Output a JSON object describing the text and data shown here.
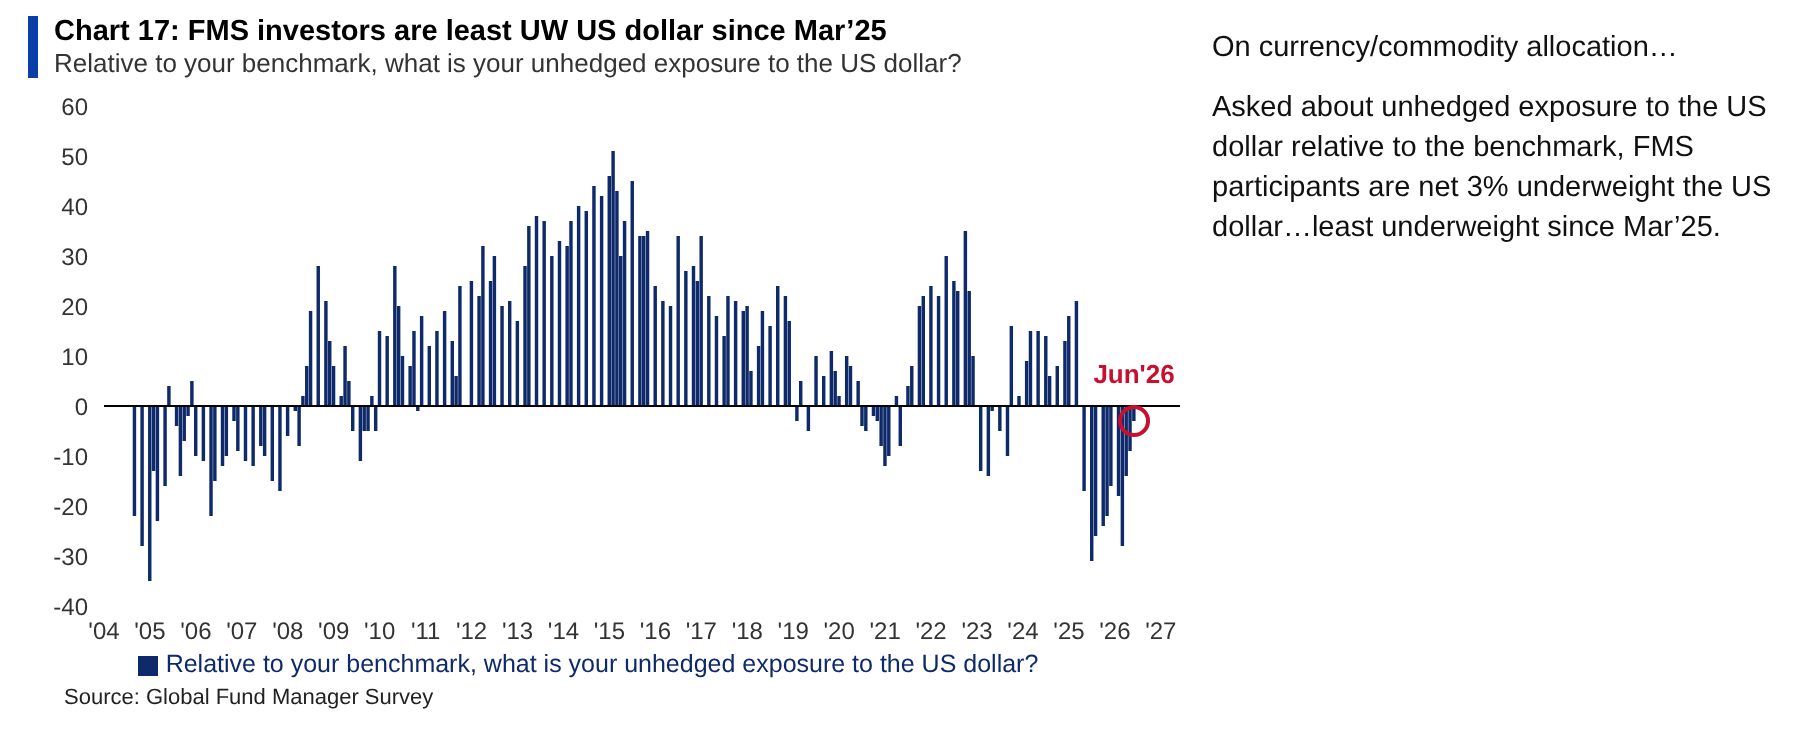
{
  "chart_data": [
    {
      "type": "bar",
      "title": "Chart 17: FMS investors are least UW US dollar since Mar’25",
      "subtitle": "Relative to your benchmark, what is your unhedged exposure to the US dollar?",
      "x": [
        "2004-09",
        "2004-11",
        "2005-01",
        "2005-02",
        "2005-03",
        "2005-05",
        "2005-06",
        "2005-08",
        "2005-09",
        "2005-10",
        "2005-11",
        "2005-12",
        "2006-01",
        "2006-03",
        "2006-05",
        "2006-06",
        "2006-08",
        "2006-09",
        "2006-11",
        "2006-12",
        "2007-02",
        "2007-04",
        "2007-06",
        "2007-07",
        "2007-09",
        "2007-11",
        "2008-01",
        "2008-03",
        "2008-04",
        "2008-05",
        "2008-06",
        "2008-07",
        "2008-09",
        "2008-11",
        "2008-12",
        "2009-01",
        "2009-03",
        "2009-04",
        "2009-05",
        "2009-06",
        "2009-08",
        "2009-09",
        "2009-10",
        "2009-11",
        "2009-12",
        "2010-01",
        "2010-03",
        "2010-05",
        "2010-06",
        "2010-07",
        "2010-09",
        "2010-10",
        "2010-11",
        "2010-12",
        "2011-02",
        "2011-04",
        "2011-06",
        "2011-08",
        "2011-09",
        "2011-10",
        "2012-01",
        "2012-03",
        "2012-04",
        "2012-06",
        "2012-07",
        "2012-09",
        "2012-11",
        "2013-01",
        "2013-03",
        "2013-04",
        "2013-06",
        "2013-08",
        "2013-10",
        "2013-12",
        "2014-02",
        "2014-03",
        "2014-05",
        "2014-07",
        "2014-09",
        "2014-11",
        "2015-01",
        "2015-02",
        "2015-03",
        "2015-04",
        "2015-05",
        "2015-07",
        "2015-09",
        "2015-10",
        "2015-11",
        "2016-01",
        "2016-03",
        "2016-05",
        "2016-07",
        "2016-09",
        "2016-11",
        "2016-12",
        "2017-01",
        "2017-03",
        "2017-05",
        "2017-07",
        "2017-08",
        "2017-10",
        "2017-12",
        "2018-01",
        "2018-02",
        "2018-04",
        "2018-05",
        "2018-07",
        "2018-09",
        "2018-11",
        "2018-12",
        "2019-02",
        "2019-03",
        "2019-05",
        "2019-07",
        "2019-09",
        "2019-11",
        "2019-12",
        "2020-01",
        "2020-03",
        "2020-04",
        "2020-06",
        "2020-07",
        "2020-08",
        "2020-10",
        "2020-11",
        "2020-12",
        "2021-01",
        "2021-02",
        "2021-04",
        "2021-05",
        "2021-07",
        "2021-08",
        "2021-10",
        "2021-11",
        "2022-01",
        "2022-03",
        "2022-05",
        "2022-07",
        "2022-08",
        "2022-10",
        "2022-11",
        "2022-12",
        "2023-02",
        "2023-04",
        "2023-05",
        "2023-07",
        "2023-09",
        "2023-10",
        "2023-12",
        "2024-02",
        "2024-03",
        "2024-05",
        "2024-07",
        "2024-08",
        "2024-10",
        "2024-12",
        "2025-01",
        "2025-03",
        "2025-04",
        "2025-05",
        "2025-07",
        "2025-08",
        "2025-10",
        "2025-11",
        "2025-12",
        "2026-02",
        "2026-03",
        "2026-04",
        "2026-05",
        "2026-06"
      ],
      "series": [
        {
          "name": "Relative to your benchmark, what is your unhedged exposure to the US dollar?",
          "color": "#0f2a6b",
          "values": [
            -22,
            -28,
            -35,
            -13,
            -23,
            -16,
            4,
            -4,
            -14,
            -7,
            -2,
            5,
            -10,
            -11,
            -22,
            -15,
            -12,
            -10,
            -3,
            -9,
            -11,
            -12,
            -8,
            -10,
            -15,
            -17,
            -6,
            -1,
            -8,
            2,
            8,
            19,
            28,
            21,
            13,
            8,
            2,
            12,
            5,
            -5,
            -11,
            -5,
            -5,
            2,
            -5,
            15,
            14,
            28,
            20,
            10,
            8,
            15,
            -1,
            18,
            12,
            15,
            19,
            13,
            6,
            24,
            25,
            22,
            32,
            25,
            30,
            20,
            21,
            17,
            28,
            36,
            38,
            37,
            30,
            33,
            32,
            37,
            40,
            39,
            44,
            42,
            46,
            51,
            43,
            30,
            37,
            45,
            34,
            34,
            35,
            24,
            21,
            20,
            34,
            27,
            28,
            25,
            34,
            22,
            18,
            14,
            22,
            21,
            19,
            20,
            7,
            12,
            19,
            16,
            24,
            22,
            17,
            -3,
            5,
            -5,
            10,
            6,
            11,
            7,
            2,
            10,
            8,
            5,
            -4,
            -5,
            -2,
            -3,
            -8,
            -12,
            -10,
            2,
            -8,
            4,
            8,
            20,
            22,
            24,
            22,
            30,
            25,
            23,
            35,
            23,
            10,
            -13,
            -14,
            -1,
            -5,
            -10,
            16,
            2,
            9,
            15,
            15,
            14,
            6,
            8,
            13,
            18,
            21,
            0,
            -17,
            -31,
            -26,
            -24,
            -22,
            -16,
            -18,
            -28,
            -14,
            -9,
            -3
          ]
        }
      ],
      "xlim": [
        "2004",
        "2027-06"
      ],
      "xticks": [
        {
          "value": "2004",
          "label": "'04"
        },
        {
          "value": "2005",
          "label": "'05"
        },
        {
          "value": "2006",
          "label": "'06"
        },
        {
          "value": "2007",
          "label": "'07"
        },
        {
          "value": "2008",
          "label": "'08"
        },
        {
          "value": "2009",
          "label": "'09"
        },
        {
          "value": "2010",
          "label": "'10"
        },
        {
          "value": "2011",
          "label": "'11"
        },
        {
          "value": "2012",
          "label": "'12"
        },
        {
          "value": "2013",
          "label": "'13"
        },
        {
          "value": "2014",
          "label": "'14"
        },
        {
          "value": "2015",
          "label": "'15"
        },
        {
          "value": "2016",
          "label": "'16"
        },
        {
          "value": "2017",
          "label": "'17"
        },
        {
          "value": "2018",
          "label": "'18"
        },
        {
          "value": "2019",
          "label": "'19"
        },
        {
          "value": "2020",
          "label": "'20"
        },
        {
          "value": "2021",
          "label": "'21"
        },
        {
          "value": "2022",
          "label": "'22"
        },
        {
          "value": "2023",
          "label": "'23"
        },
        {
          "value": "2024",
          "label": "'24"
        },
        {
          "value": "2025",
          "label": "'25"
        },
        {
          "value": "2026",
          "label": "'26"
        },
        {
          "value": "2027",
          "label": "'27"
        }
      ],
      "ylim": [
        -40,
        60
      ],
      "yticks": [
        -40,
        -30,
        -20,
        -10,
        0,
        10,
        20,
        30,
        40,
        50,
        60
      ],
      "ref_lines": [
        {
          "axis": "y",
          "value": 0,
          "color": "#000000"
        }
      ],
      "legend": "bottom",
      "grid": false,
      "annotations": [
        {
          "text": "Jun'26",
          "x": "2026-06",
          "y": -3
        },
        "Source: Global Fund Manager Survey"
      ]
    },
    {
      "type": "other",
      "title": "On currency/commodity allocation…",
      "annotations": [
        "Asked about unhedged exposure to the US dollar relative to the benchmark, FMS participants are net 3% underweight the US dollar…least underweight since Mar’25."
      ]
    }
  ]
}
